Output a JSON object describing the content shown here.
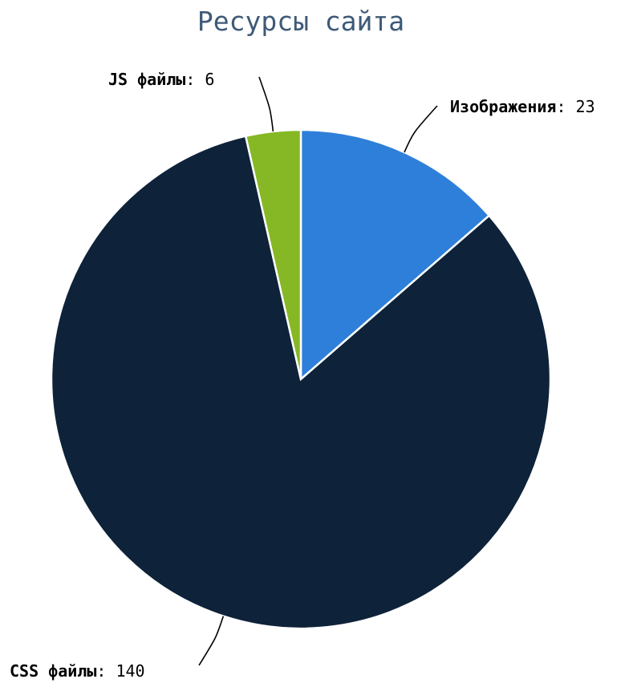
{
  "chart_data": {
    "type": "pie",
    "title": "Ресурсы сайта",
    "series": [
      {
        "name": "Изображения",
        "value": 23,
        "color": "#2e7fd9"
      },
      {
        "name": "CSS файлы",
        "value": 140,
        "color": "#0e2239"
      },
      {
        "name": "JS файлы",
        "value": 6,
        "color": "#86b825"
      }
    ],
    "label_separator": ": ",
    "start_angle_deg": 0,
    "direction": "clockwise"
  }
}
